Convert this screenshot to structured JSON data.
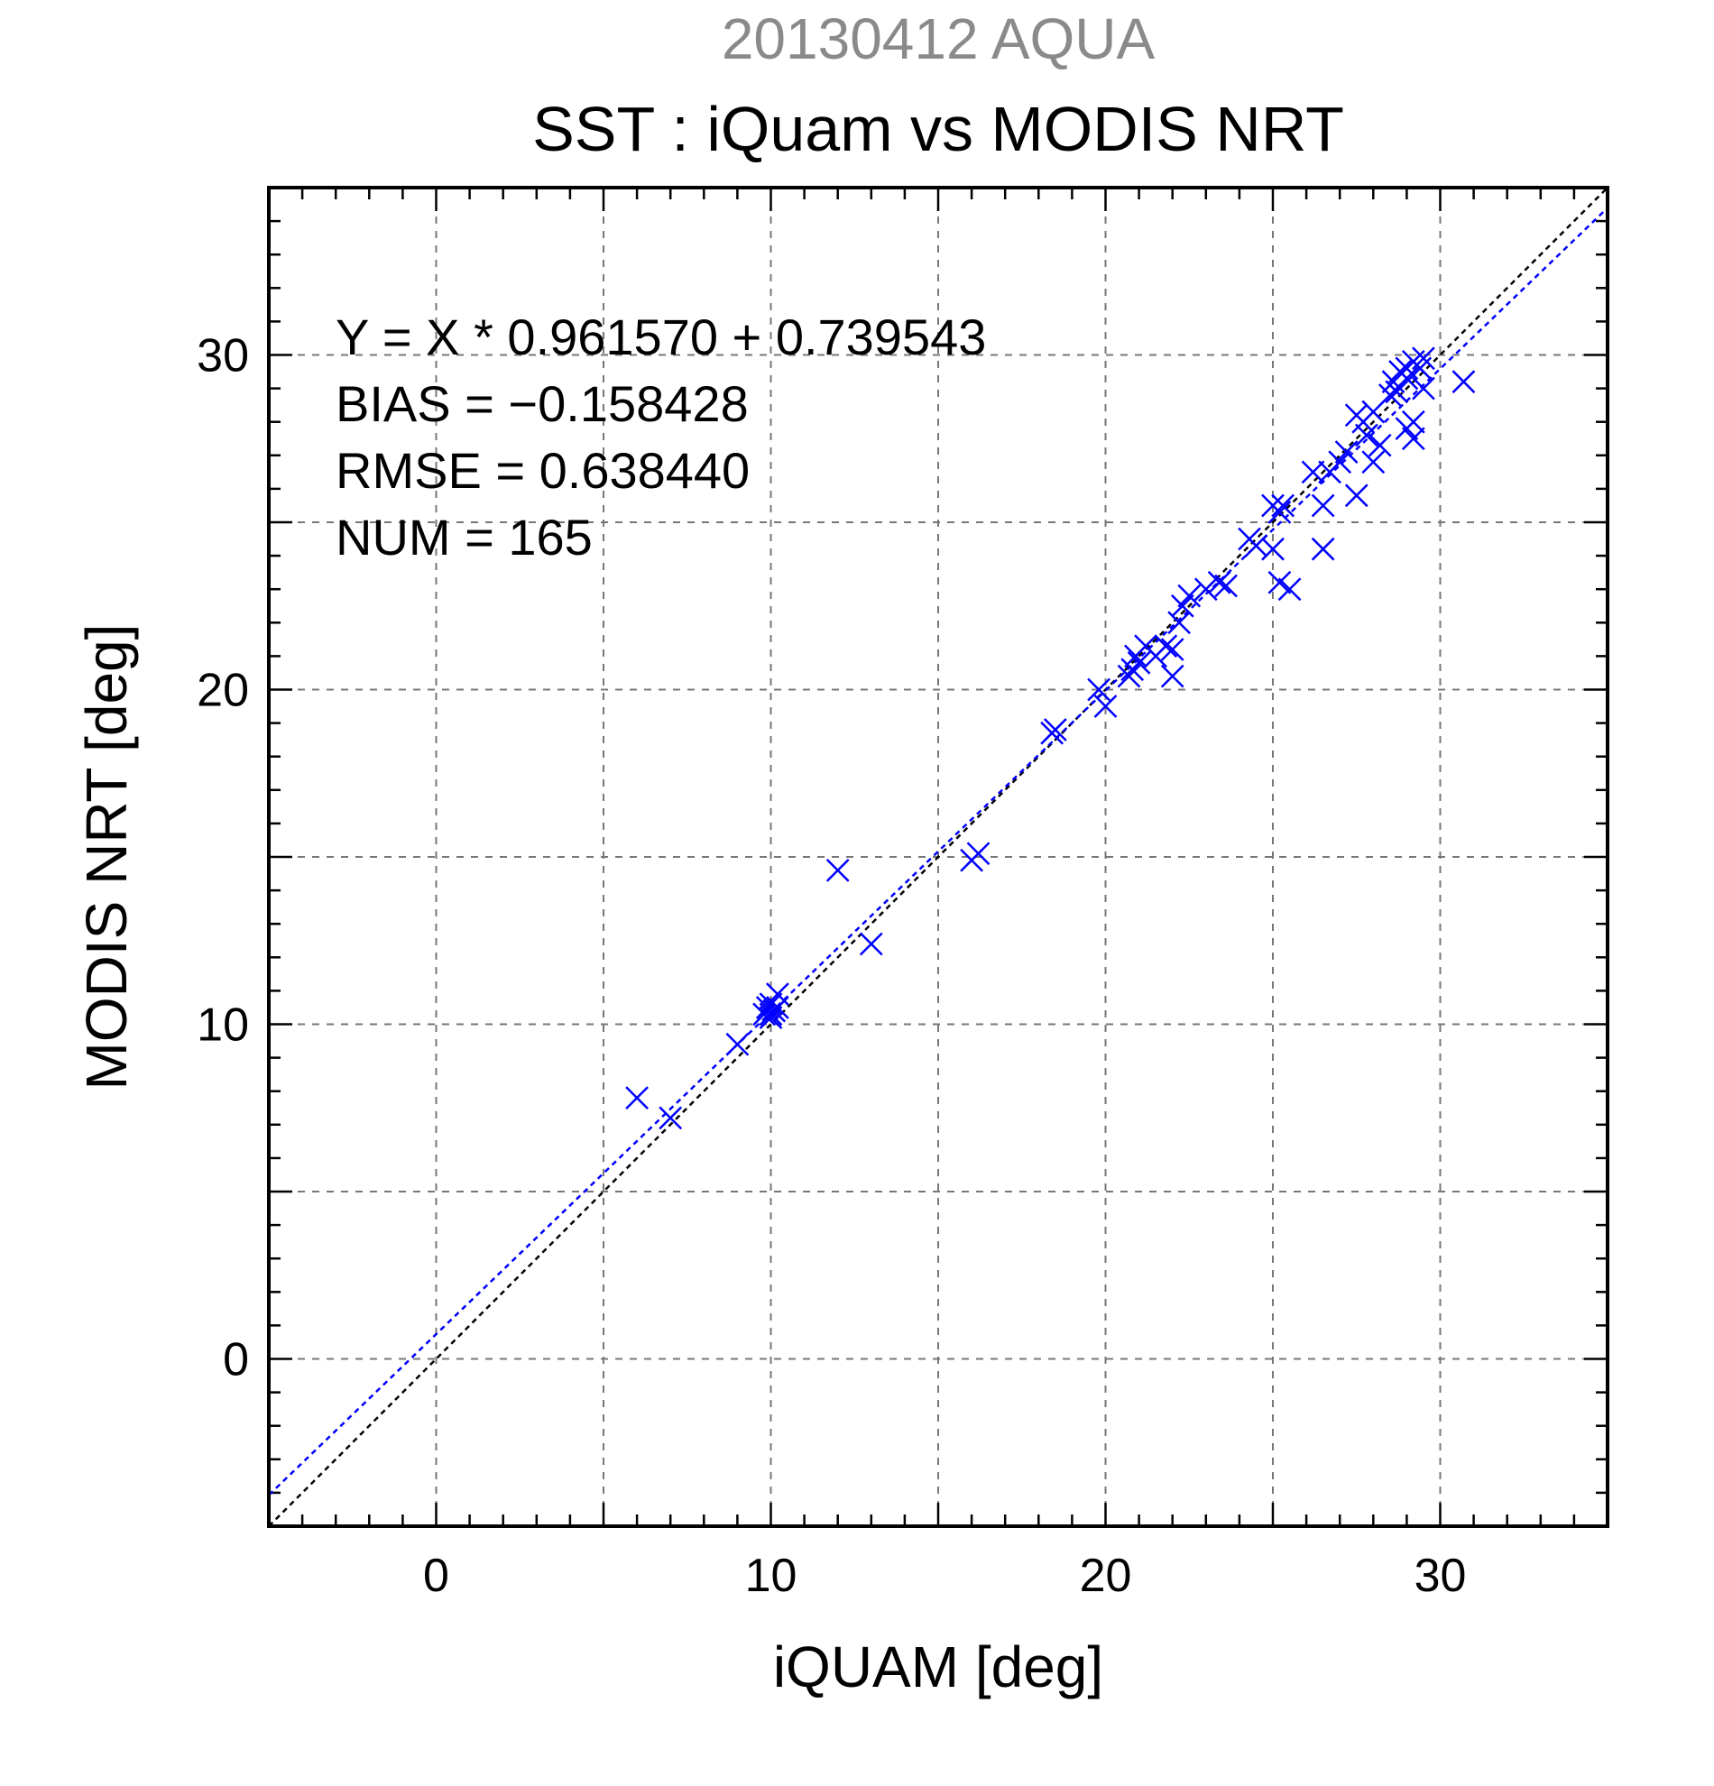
{
  "chart_data": {
    "type": "scatter",
    "title": "20130412 AQUA",
    "subtitle": "SST : iQuam vs MODIS NRT",
    "xlabel": "iQUAM [deg]",
    "ylabel": "MODIS NRT [deg]",
    "xlim": [
      -5,
      35
    ],
    "ylim": [
      -5,
      35
    ],
    "xticks": [
      0,
      10,
      20,
      30
    ],
    "yticks": [
      0,
      10,
      20,
      30
    ],
    "grid": true,
    "stats": [
      "Y = X * 0.961570 + 0.739543",
      "BIAS = −0.158428",
      "RMSE = 0.638440",
      "NUM = 165"
    ],
    "regression": {
      "slope": 0.96157,
      "intercept": 0.739543
    },
    "colors": {
      "points": "#0000ff",
      "fit_line": "#0000ff",
      "identity_line": "#000000",
      "title_top": "#8a8a8a"
    },
    "series": [
      {
        "marker": "x",
        "x": [
          6.0,
          7.0,
          9.0,
          9.8,
          9.9,
          10.0,
          10.0,
          10.1,
          10.2,
          10.0,
          10.2,
          12.0,
          13.0,
          16.0,
          16.2,
          18.4,
          18.5,
          19.8,
          20.0,
          20.7,
          20.8,
          20.9,
          21.0,
          21.2,
          21.5,
          21.8,
          22.0,
          22.0,
          22.2,
          22.3,
          22.5,
          23.0,
          23.4,
          23.6,
          24.3,
          24.5,
          25.0,
          25.0,
          25.2,
          25.3,
          25.5,
          25.2,
          26.2,
          26.5,
          26.7,
          26.5,
          27.0,
          27.2,
          27.5,
          27.5,
          27.7,
          27.8,
          28.0,
          28.0,
          28.2,
          28.5,
          28.6,
          28.7,
          28.8,
          29.0,
          29.0,
          29.2,
          29.4,
          29.5,
          29.2,
          29.5,
          30.7,
          29.2,
          29.0
        ],
        "y": [
          7.8,
          7.2,
          9.4,
          10.3,
          10.5,
          10.2,
          10.6,
          10.4,
          10.5,
          10.3,
          10.9,
          14.6,
          12.4,
          14.9,
          15.1,
          18.7,
          18.8,
          20.0,
          19.5,
          20.4,
          20.6,
          21.0,
          20.8,
          21.3,
          21.0,
          21.3,
          21.2,
          20.4,
          22.0,
          22.5,
          22.8,
          23.0,
          23.2,
          23.1,
          24.5,
          24.3,
          25.5,
          24.2,
          23.2,
          25.5,
          23.0,
          25.3,
          26.5,
          25.5,
          26.5,
          24.2,
          26.8,
          27.1,
          25.8,
          28.2,
          28.0,
          27.6,
          28.3,
          26.8,
          27.3,
          28.8,
          29.2,
          28.9,
          29.5,
          29.6,
          29.3,
          29.8,
          29.6,
          29.9,
          27.5,
          29.0,
          29.2,
          28.0,
          27.8
        ]
      }
    ]
  }
}
